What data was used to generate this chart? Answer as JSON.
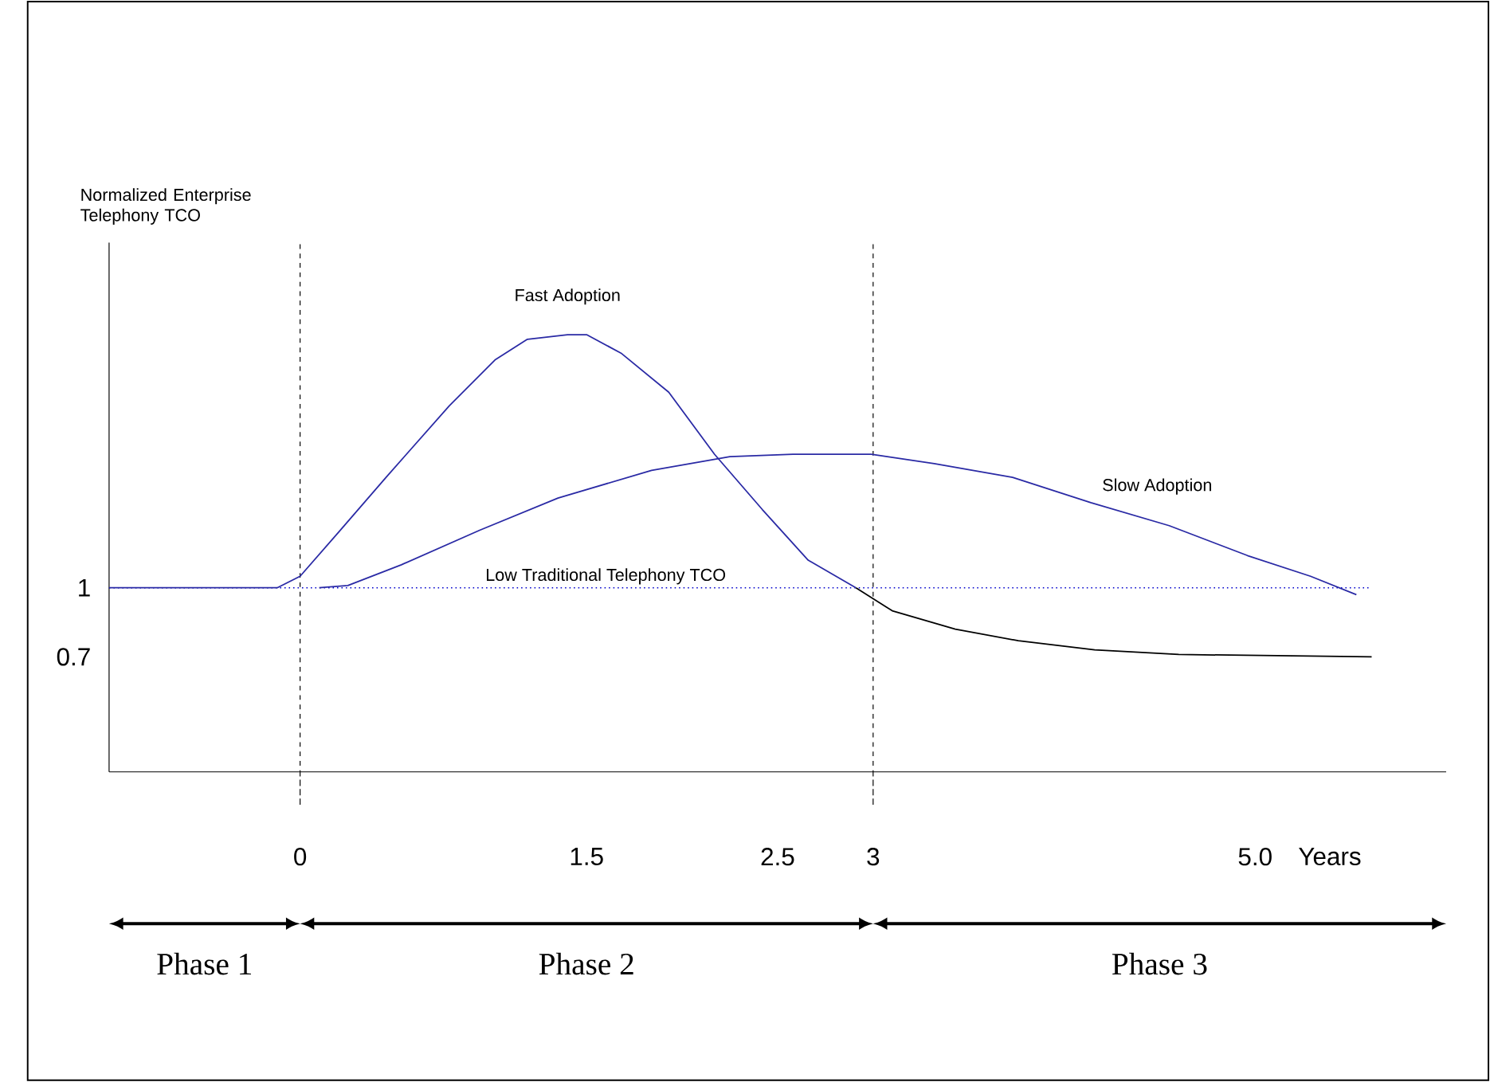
{
  "chart_data": {
    "type": "line",
    "xlabel": "Years",
    "ylabel": "Normalized Enterprise Telephony TCO",
    "xlim": [
      -1,
      6
    ],
    "ylim": [
      0.2,
      2.5
    ],
    "xticks": [
      0,
      1.5,
      2.5,
      3,
      {
        "value": 5,
        "label": "5.0"
      }
    ],
    "yticks": [
      0.7,
      1
    ],
    "grid": false,
    "marker": "none",
    "line_style": "solid",
    "series": [
      {
        "name": "Fast Adoption",
        "color": "#2a2aa5",
        "x": [
          -1.0,
          -0.12,
          0,
          0.2,
          0.45,
          0.78,
          1.02,
          1.19,
          1.4,
          1.5,
          1.68,
          1.93,
          2.17,
          2.42,
          2.66,
          2.91
        ],
        "values": [
          1.0,
          1.0,
          1.05,
          1.24,
          1.48,
          1.79,
          1.99,
          2.08,
          2.1,
          2.1,
          2.02,
          1.85,
          1.58,
          1.34,
          1.12,
          1.0
        ]
      },
      {
        "color": "#000000",
        "x": [
          2.91,
          3.1,
          3.43,
          3.76,
          4.16,
          4.6,
          5.61
        ],
        "values": [
          1.0,
          0.9,
          0.82,
          0.77,
          0.73,
          0.71,
          0.7
        ]
      },
      {
        "name": "Slow Adoption",
        "color": "#2a2aa5",
        "x": [
          0.1,
          0.25,
          0.53,
          0.94,
          1.35,
          1.84,
          2.25,
          2.58,
          2.99,
          3.32,
          3.73,
          4.14,
          4.55,
          4.96,
          5.29,
          5.53
        ],
        "values": [
          1.0,
          1.01,
          1.1,
          1.25,
          1.39,
          1.51,
          1.57,
          1.58,
          1.58,
          1.54,
          1.48,
          1.37,
          1.27,
          1.14,
          1.05,
          0.97
        ]
      }
    ],
    "ref_lines": [
      {
        "axis": "x",
        "value": 0,
        "color": "#000000",
        "line_style": "dashed"
      },
      {
        "axis": "x",
        "value": 3,
        "color": "#000000",
        "line_style": "dashed"
      },
      {
        "axis": "y",
        "value": 1,
        "label": "Low Traditional Telephony TCO",
        "color": "#0000cc",
        "line_style": "dotted"
      }
    ],
    "annotations": [
      "Phase 1",
      "Phase 2",
      "Phase 3"
    ]
  }
}
